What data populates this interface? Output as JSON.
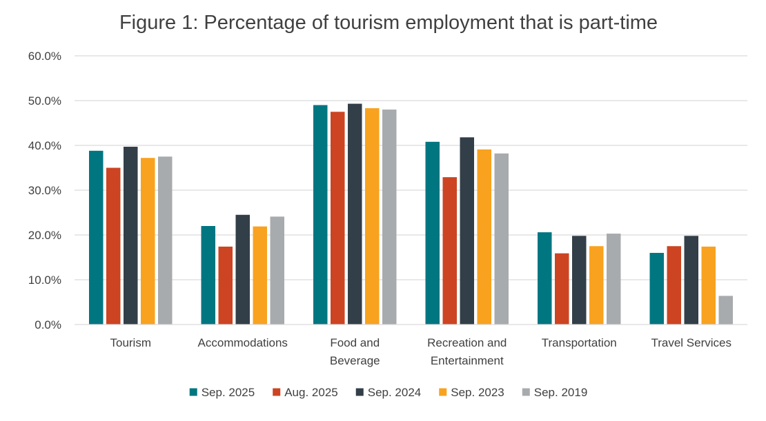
{
  "chart_data": {
    "type": "bar",
    "title": "Figure 1: Percentage of tourism employment that is part-time",
    "xlabel": "",
    "ylabel": "",
    "ylim": [
      0,
      60
    ],
    "yticks": [
      "0.0%",
      "10.0%",
      "20.0%",
      "30.0%",
      "40.0%",
      "50.0%",
      "60.0%"
    ],
    "grid": true,
    "legend_position": "bottom",
    "categories": [
      [
        "Tourism"
      ],
      [
        "Accommodations"
      ],
      [
        "Food and",
        "Beverage"
      ],
      [
        "Recreation and",
        "Entertainment"
      ],
      [
        "Transportation"
      ],
      [
        "Travel Services"
      ]
    ],
    "series": [
      {
        "name": "Sep. 2025",
        "color": "#007681",
        "values": [
          38.8,
          22.0,
          49.0,
          40.8,
          20.6,
          16.0
        ]
      },
      {
        "name": "Aug. 2025",
        "color": "#CC4422",
        "values": [
          35.0,
          17.4,
          47.5,
          32.9,
          15.9,
          17.5
        ]
      },
      {
        "name": "Sep. 2024",
        "color": "#323E48",
        "values": [
          39.7,
          24.5,
          49.3,
          41.8,
          19.8,
          19.8
        ]
      },
      {
        "name": "Sep. 2023",
        "color": "#F8A21F",
        "values": [
          37.2,
          21.9,
          48.3,
          39.1,
          17.5,
          17.4
        ]
      },
      {
        "name": "Sep. 2019",
        "color": "#A8ABAE",
        "values": [
          37.5,
          24.1,
          48.0,
          38.2,
          20.3,
          6.4
        ]
      }
    ]
  }
}
